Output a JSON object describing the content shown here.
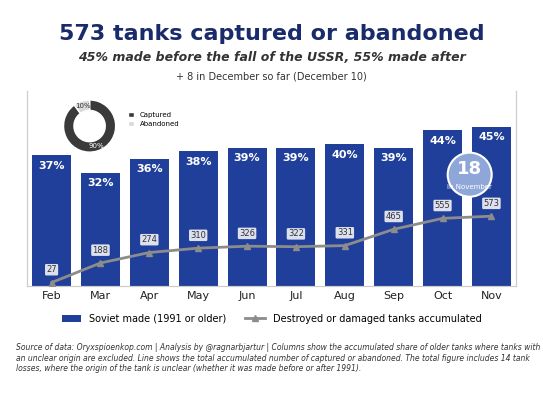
{
  "chart_data": [
    {
      "type": "bar",
      "title": "573 tanks captured or abandoned",
      "subtitle": "45% made before the fall of the USSR, 55% made after",
      "note": "+ 8 in December so far (December 10)",
      "callout": {
        "value": 18,
        "label": "in November"
      },
      "source": "Source of data: Oryxspioenkop.com | Analysis by @ragnarbjartur | Columns show the accumulated share of older tanks where tanks with an unclear origin are excluded. Line shows the total accumulated number of captured or abandoned. The total figure includes 14 tank losses, where the origin of the tank is unclear (whether it was made before or after 1991).",
      "categories": [
        "Feb",
        "Mar",
        "Apr",
        "May",
        "Jun",
        "Jul",
        "Aug",
        "Sep",
        "Oct",
        "Nov"
      ],
      "series": [
        {
          "name": "Soviet made (1991 or older)",
          "type": "bar",
          "color": "#203f9a",
          "values": [
            37,
            32,
            36,
            38,
            39,
            39,
            40,
            39,
            44,
            45
          ],
          "value_labels": [
            "37%",
            "32%",
            "36%",
            "38%",
            "39%",
            "39%",
            "40%",
            "39%",
            "44%",
            "45%"
          ]
        },
        {
          "name": "Destroyed or damaged tanks accumulated",
          "type": "line",
          "axis": "y2",
          "color": "#8c8c8c",
          "marker": "triangle",
          "values": [
            27,
            188,
            274,
            310,
            326,
            322,
            331,
            465,
            555,
            573
          ]
        }
      ],
      "ylim": [
        0,
        55
      ],
      "yticks": [],
      "y2lim": [
        0,
        1600
      ],
      "y2ticks": [],
      "tick_labels": "x",
      "data_labels": true,
      "legend": "lower center",
      "grid": false
    },
    {
      "type": "pie",
      "categories": [
        "Captured",
        "Abandoned"
      ],
      "values": [
        90,
        10
      ],
      "value_labels": [
        "90%",
        "10%"
      ],
      "colors": [
        "#3a3a3a",
        "#d9d9d9"
      ],
      "data_labels": true,
      "legend": "center left"
    }
  ]
}
